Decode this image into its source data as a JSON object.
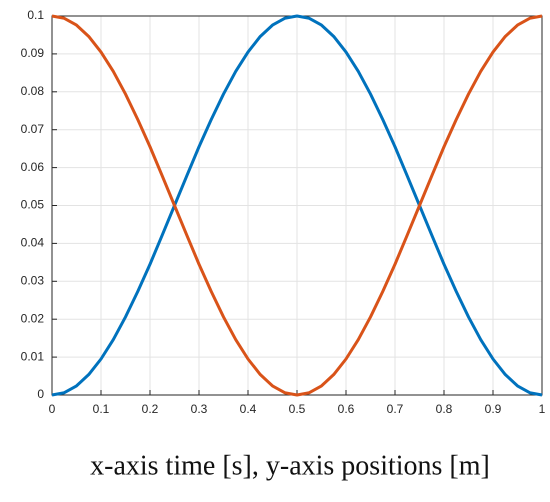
{
  "chart_data": {
    "type": "line",
    "caption": "x-axis time [s], y-axis positions [m]",
    "x": [
      0,
      0.025,
      0.05,
      0.075,
      0.1,
      0.125,
      0.15,
      0.175,
      0.2,
      0.225,
      0.25,
      0.275,
      0.3,
      0.325,
      0.35,
      0.375,
      0.4,
      0.425,
      0.45,
      0.475,
      0.5,
      0.525,
      0.55,
      0.575,
      0.6,
      0.625,
      0.65,
      0.675,
      0.7,
      0.725,
      0.75,
      0.775,
      0.8,
      0.825,
      0.85,
      0.875,
      0.9,
      0.925,
      0.95,
      0.975,
      1
    ],
    "series": [
      {
        "color": "#0072bd",
        "values": [
          0,
          0.0006,
          0.0024,
          0.0054,
          0.0095,
          0.0146,
          0.0206,
          0.0273,
          0.0345,
          0.0422,
          0.05,
          0.0578,
          0.0655,
          0.0727,
          0.0794,
          0.0854,
          0.0905,
          0.0946,
          0.0976,
          0.0994,
          0.1,
          0.0994,
          0.0976,
          0.0946,
          0.0905,
          0.0854,
          0.0794,
          0.0727,
          0.0655,
          0.0578,
          0.05,
          0.0422,
          0.0345,
          0.0273,
          0.0206,
          0.0146,
          0.0095,
          0.0054,
          0.0024,
          0.0006,
          0
        ]
      },
      {
        "color": "#d95319",
        "values": [
          0.1,
          0.0994,
          0.0976,
          0.0946,
          0.0905,
          0.0854,
          0.0794,
          0.0727,
          0.0655,
          0.0578,
          0.05,
          0.0422,
          0.0345,
          0.0273,
          0.0206,
          0.0146,
          0.0095,
          0.0054,
          0.0024,
          0.0006,
          0,
          0.0006,
          0.0024,
          0.0054,
          0.0095,
          0.0146,
          0.0206,
          0.0273,
          0.0345,
          0.0422,
          0.05,
          0.0578,
          0.0655,
          0.0727,
          0.0794,
          0.0854,
          0.0905,
          0.0946,
          0.0976,
          0.0994,
          0.1
        ]
      }
    ],
    "xlim": [
      0,
      1
    ],
    "xticks": [
      0,
      0.1,
      0.2,
      0.3,
      0.4,
      0.5,
      0.6,
      0.7,
      0.8,
      0.9,
      1
    ],
    "ylim": [
      0,
      0.1
    ],
    "yticks": [
      0,
      0.01,
      0.02,
      0.03,
      0.04,
      0.05,
      0.06,
      0.07,
      0.08,
      0.09,
      0.1
    ],
    "grid": true
  }
}
